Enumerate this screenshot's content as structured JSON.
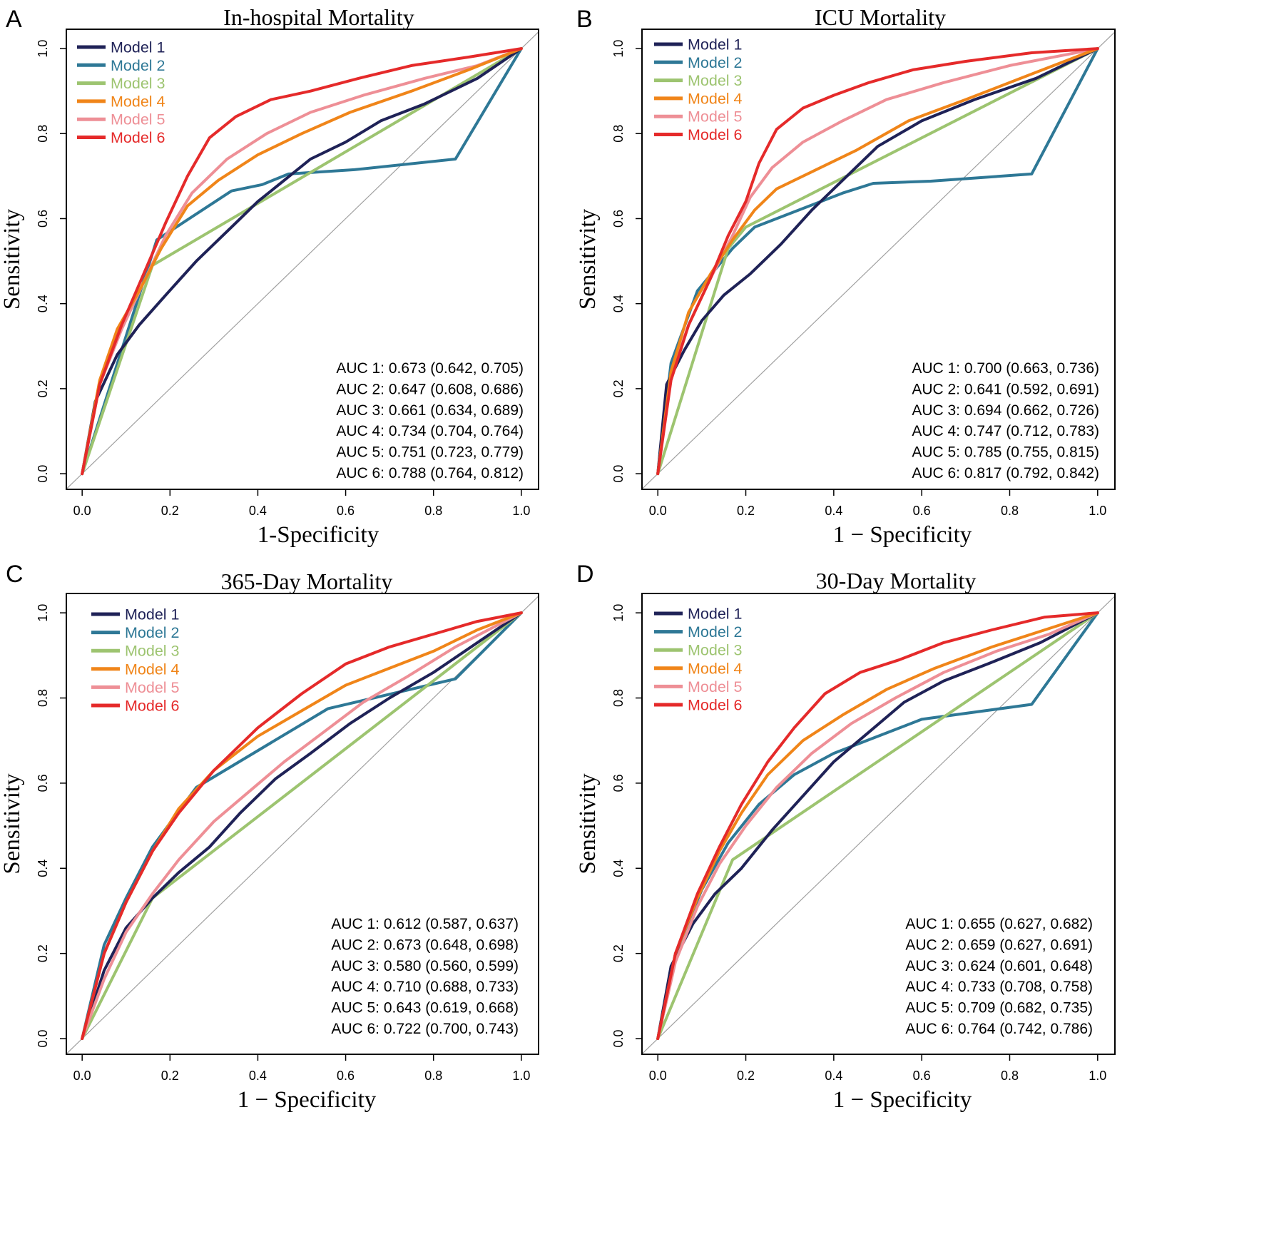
{
  "colors": {
    "model1": "#1f2257",
    "model2": "#2e7896",
    "model3": "#9dc470",
    "model4": "#f08519",
    "model5": "#ee8f96",
    "model6": "#e52a2a",
    "diagonal": "#a0a0a0",
    "axis": "#000000"
  },
  "chart_data": [
    {
      "type": "line",
      "panel_label": "A",
      "title": "In-hospital Mortality",
      "xlabel": "1-Specificity",
      "ylabel": "Sensitivity",
      "xlim": [
        0,
        1
      ],
      "ylim": [
        0,
        1
      ],
      "x_ticks": [
        "0.0",
        "0.2",
        "0.4",
        "0.6",
        "0.8",
        "1.0"
      ],
      "y_ticks": [
        "0.0",
        "0.2",
        "0.4",
        "0.6",
        "0.8",
        "1.0"
      ],
      "legend_position": "top-left",
      "series": [
        {
          "name": "Model 1",
          "color_key": "model1",
          "x": [
            0,
            0.03,
            0.08,
            0.13,
            0.19,
            0.26,
            0.34,
            0.4,
            0.46,
            0.52,
            0.6,
            0.68,
            0.78,
            0.9,
            1.0
          ],
          "y": [
            0,
            0.17,
            0.28,
            0.35,
            0.42,
            0.5,
            0.58,
            0.64,
            0.69,
            0.74,
            0.78,
            0.83,
            0.87,
            0.93,
            1.0
          ]
        },
        {
          "name": "Model 2",
          "color_key": "model2",
          "x": [
            0,
            0.17,
            0.34,
            0.41,
            0.47,
            0.62,
            0.85,
            1.0
          ],
          "y": [
            0,
            0.55,
            0.665,
            0.68,
            0.705,
            0.715,
            0.74,
            1.0
          ]
        },
        {
          "name": "Model 3",
          "color_key": "model3",
          "x": [
            0,
            0.16,
            1.0
          ],
          "y": [
            0,
            0.49,
            1.0
          ]
        },
        {
          "name": "Model 4",
          "color_key": "model4",
          "x": [
            0,
            0.04,
            0.08,
            0.13,
            0.18,
            0.24,
            0.31,
            0.4,
            0.5,
            0.61,
            0.75,
            0.88,
            1.0
          ],
          "y": [
            0,
            0.22,
            0.34,
            0.43,
            0.53,
            0.63,
            0.69,
            0.75,
            0.8,
            0.85,
            0.9,
            0.95,
            1.0
          ]
        },
        {
          "name": "Model 5",
          "color_key": "model5",
          "x": [
            0,
            0.04,
            0.09,
            0.14,
            0.19,
            0.25,
            0.33,
            0.42,
            0.52,
            0.64,
            0.78,
            0.9,
            1.0
          ],
          "y": [
            0,
            0.21,
            0.34,
            0.45,
            0.56,
            0.66,
            0.74,
            0.8,
            0.85,
            0.89,
            0.93,
            0.96,
            1.0
          ]
        },
        {
          "name": "Model 6",
          "color_key": "model6",
          "x": [
            0,
            0.04,
            0.09,
            0.14,
            0.19,
            0.24,
            0.29,
            0.35,
            0.43,
            0.52,
            0.63,
            0.75,
            0.88,
            1.0
          ],
          "y": [
            0,
            0.21,
            0.35,
            0.47,
            0.59,
            0.7,
            0.79,
            0.84,
            0.88,
            0.9,
            0.93,
            0.96,
            0.98,
            1.0
          ]
        }
      ],
      "annotations": [
        "AUC 1: 0.673 (0.642, 0.705)",
        "AUC 2: 0.647 (0.608, 0.686)",
        "AUC 3: 0.661 (0.634, 0.689)",
        "AUC 4: 0.734 (0.704, 0.764)",
        "AUC 5: 0.751 (0.723, 0.779)",
        "AUC 6: 0.788 (0.764, 0.812)"
      ]
    },
    {
      "type": "line",
      "panel_label": "B",
      "title": "ICU Mortality",
      "xlabel": "1 − Specificity",
      "ylabel": "Sensitivity",
      "xlim": [
        0,
        1
      ],
      "ylim": [
        0,
        1
      ],
      "x_ticks": [
        "0.0",
        "0.2",
        "0.4",
        "0.6",
        "0.8",
        "1.0"
      ],
      "y_ticks": [
        "0.0",
        "0.2",
        "0.4",
        "0.6",
        "0.8",
        "1.0"
      ],
      "legend_position": "top-left",
      "series": [
        {
          "name": "Model 1",
          "color_key": "model1",
          "x": [
            0,
            0.02,
            0.06,
            0.1,
            0.15,
            0.21,
            0.28,
            0.35,
            0.42,
            0.5,
            0.6,
            0.72,
            0.86,
            1.0
          ],
          "y": [
            0,
            0.21,
            0.29,
            0.36,
            0.42,
            0.47,
            0.54,
            0.62,
            0.69,
            0.77,
            0.83,
            0.88,
            0.93,
            1.0
          ]
        },
        {
          "name": "Model 2",
          "color_key": "model2",
          "x": [
            0,
            0.03,
            0.09,
            0.13,
            0.17,
            0.22,
            0.42,
            0.49,
            0.62,
            0.85,
            1.0
          ],
          "y": [
            0,
            0.26,
            0.43,
            0.48,
            0.53,
            0.58,
            0.66,
            0.683,
            0.688,
            0.705,
            1.0
          ]
        },
        {
          "name": "Model 3",
          "color_key": "model3",
          "x": [
            0,
            0.16,
            0.2,
            1.0
          ],
          "y": [
            0,
            0.53,
            0.58,
            1.0
          ]
        },
        {
          "name": "Model 4",
          "color_key": "model4",
          "x": [
            0,
            0.03,
            0.07,
            0.12,
            0.17,
            0.22,
            0.27,
            0.35,
            0.45,
            0.57,
            0.7,
            0.85,
            1.0
          ],
          "y": [
            0,
            0.24,
            0.38,
            0.47,
            0.55,
            0.62,
            0.67,
            0.71,
            0.76,
            0.83,
            0.88,
            0.94,
            1.0
          ]
        },
        {
          "name": "Model 5",
          "color_key": "model5",
          "x": [
            0,
            0.03,
            0.07,
            0.12,
            0.17,
            0.21,
            0.26,
            0.33,
            0.42,
            0.52,
            0.65,
            0.8,
            1.0
          ],
          "y": [
            0,
            0.23,
            0.35,
            0.46,
            0.56,
            0.65,
            0.72,
            0.78,
            0.83,
            0.88,
            0.92,
            0.96,
            1.0
          ]
        },
        {
          "name": "Model 6",
          "color_key": "model6",
          "x": [
            0,
            0.03,
            0.07,
            0.12,
            0.16,
            0.2,
            0.23,
            0.27,
            0.33,
            0.4,
            0.48,
            0.58,
            0.7,
            0.85,
            1.0
          ],
          "y": [
            0,
            0.22,
            0.35,
            0.46,
            0.56,
            0.64,
            0.73,
            0.81,
            0.86,
            0.89,
            0.92,
            0.95,
            0.97,
            0.99,
            1.0
          ]
        }
      ],
      "annotations": [
        "AUC 1: 0.700 (0.663, 0.736)",
        "AUC 2: 0.641 (0.592, 0.691)",
        "AUC 3: 0.694 (0.662, 0.726)",
        "AUC 4: 0.747 (0.712, 0.783)",
        "AUC 5: 0.785 (0.755, 0.815)",
        "AUC 6: 0.817 (0.792, 0.842)"
      ]
    },
    {
      "type": "line",
      "panel_label": "C",
      "title": "365-Day Mortality",
      "xlabel": "1 − Specificity",
      "ylabel": "Sensitivity",
      "xlim": [
        0,
        1
      ],
      "ylim": [
        0,
        1
      ],
      "x_ticks": [
        "0.0",
        "0.2",
        "0.4",
        "0.6",
        "0.8",
        "1.0"
      ],
      "y_ticks": [
        "0.0",
        "0.2",
        "0.4",
        "0.6",
        "0.8",
        "1.0"
      ],
      "legend_position": "top-left",
      "series": [
        {
          "name": "Model 1",
          "color_key": "model1",
          "x": [
            0,
            0.05,
            0.1,
            0.16,
            0.22,
            0.29,
            0.36,
            0.44,
            0.52,
            0.61,
            0.7,
            0.8,
            0.9,
            1.0
          ],
          "y": [
            0,
            0.16,
            0.26,
            0.33,
            0.39,
            0.45,
            0.53,
            0.61,
            0.67,
            0.74,
            0.8,
            0.86,
            0.93,
            1.0
          ]
        },
        {
          "name": "Model 2",
          "color_key": "model2",
          "x": [
            0,
            0.05,
            0.1,
            0.16,
            0.26,
            0.56,
            0.85,
            1.0
          ],
          "y": [
            0,
            0.22,
            0.33,
            0.45,
            0.59,
            0.775,
            0.845,
            1.0
          ]
        },
        {
          "name": "Model 3",
          "color_key": "model3",
          "x": [
            0,
            0.16,
            1.0
          ],
          "y": [
            0,
            0.33,
            1.0
          ]
        },
        {
          "name": "Model 4",
          "color_key": "model4",
          "x": [
            0,
            0.05,
            0.1,
            0.16,
            0.22,
            0.3,
            0.4,
            0.5,
            0.6,
            0.7,
            0.8,
            0.9,
            1.0
          ],
          "y": [
            0,
            0.2,
            0.32,
            0.44,
            0.54,
            0.63,
            0.71,
            0.77,
            0.83,
            0.87,
            0.91,
            0.96,
            1.0
          ]
        },
        {
          "name": "Model 5",
          "color_key": "model5",
          "x": [
            0,
            0.05,
            0.1,
            0.16,
            0.22,
            0.3,
            0.38,
            0.46,
            0.55,
            0.64,
            0.74,
            0.85,
            1.0
          ],
          "y": [
            0,
            0.14,
            0.25,
            0.34,
            0.42,
            0.51,
            0.58,
            0.65,
            0.72,
            0.79,
            0.85,
            0.92,
            1.0
          ]
        },
        {
          "name": "Model 6",
          "color_key": "model6",
          "x": [
            0,
            0.05,
            0.1,
            0.16,
            0.22,
            0.3,
            0.4,
            0.5,
            0.6,
            0.7,
            0.8,
            0.9,
            1.0
          ],
          "y": [
            0,
            0.2,
            0.32,
            0.44,
            0.53,
            0.63,
            0.73,
            0.81,
            0.88,
            0.92,
            0.95,
            0.98,
            1.0
          ]
        }
      ],
      "annotations": [
        "AUC 1: 0.612 (0.587, 0.637)",
        "AUC 2: 0.673 (0.648, 0.698)",
        "AUC 3: 0.580 (0.560, 0.599)",
        "AUC 4: 0.710 (0.688, 0.733)",
        "AUC 5: 0.643 (0.619, 0.668)",
        "AUC 6: 0.722 (0.700, 0.743)"
      ]
    },
    {
      "type": "line",
      "panel_label": "D",
      "title": "30-Day Mortality",
      "xlabel": "1 − Specificity",
      "ylabel": "Sensitivity",
      "xlim": [
        0,
        1
      ],
      "ylim": [
        0,
        1
      ],
      "x_ticks": [
        "0.0",
        "0.2",
        "0.4",
        "0.6",
        "0.8",
        "1.0"
      ],
      "y_ticks": [
        "0.0",
        "0.2",
        "0.4",
        "0.6",
        "0.8",
        "1.0"
      ],
      "legend_position": "top-left",
      "series": [
        {
          "name": "Model 1",
          "color_key": "model1",
          "x": [
            0,
            0.03,
            0.08,
            0.13,
            0.19,
            0.26,
            0.33,
            0.4,
            0.48,
            0.56,
            0.65,
            0.75,
            0.87,
            1.0
          ],
          "y": [
            0,
            0.17,
            0.27,
            0.34,
            0.4,
            0.49,
            0.57,
            0.65,
            0.72,
            0.79,
            0.84,
            0.88,
            0.93,
            1.0
          ]
        },
        {
          "name": "Model 2",
          "color_key": "model2",
          "x": [
            0,
            0.04,
            0.1,
            0.16,
            0.23,
            0.31,
            0.4,
            0.6,
            0.85,
            1.0
          ],
          "y": [
            0,
            0.2,
            0.35,
            0.46,
            0.55,
            0.62,
            0.67,
            0.75,
            0.785,
            1.0
          ]
        },
        {
          "name": "Model 3",
          "color_key": "model3",
          "x": [
            0,
            0.17,
            1.0
          ],
          "y": [
            0,
            0.42,
            1.0
          ]
        },
        {
          "name": "Model 4",
          "color_key": "model4",
          "x": [
            0,
            0.04,
            0.09,
            0.14,
            0.19,
            0.25,
            0.33,
            0.42,
            0.52,
            0.63,
            0.76,
            0.88,
            1.0
          ],
          "y": [
            0,
            0.2,
            0.33,
            0.44,
            0.53,
            0.62,
            0.7,
            0.76,
            0.82,
            0.87,
            0.92,
            0.96,
            1.0
          ]
        },
        {
          "name": "Model 5",
          "color_key": "model5",
          "x": [
            0,
            0.04,
            0.09,
            0.14,
            0.2,
            0.27,
            0.35,
            0.44,
            0.54,
            0.65,
            0.77,
            0.89,
            1.0
          ],
          "y": [
            0,
            0.18,
            0.31,
            0.41,
            0.5,
            0.59,
            0.67,
            0.74,
            0.8,
            0.86,
            0.91,
            0.95,
            1.0
          ]
        },
        {
          "name": "Model 6",
          "color_key": "model6",
          "x": [
            0,
            0.04,
            0.09,
            0.14,
            0.19,
            0.25,
            0.31,
            0.38,
            0.46,
            0.55,
            0.65,
            0.76,
            0.88,
            1.0
          ],
          "y": [
            0,
            0.2,
            0.34,
            0.45,
            0.55,
            0.65,
            0.73,
            0.81,
            0.86,
            0.89,
            0.93,
            0.96,
            0.99,
            1.0
          ]
        }
      ],
      "annotations": [
        "AUC 1: 0.655 (0.627, 0.682)",
        "AUC 2: 0.659 (0.627, 0.691)",
        "AUC 3: 0.624 (0.601, 0.648)",
        "AUC 4: 0.733 (0.708, 0.758)",
        "AUC 5: 0.709 (0.682, 0.735)",
        "AUC 6: 0.764 (0.742, 0.786)"
      ]
    }
  ]
}
